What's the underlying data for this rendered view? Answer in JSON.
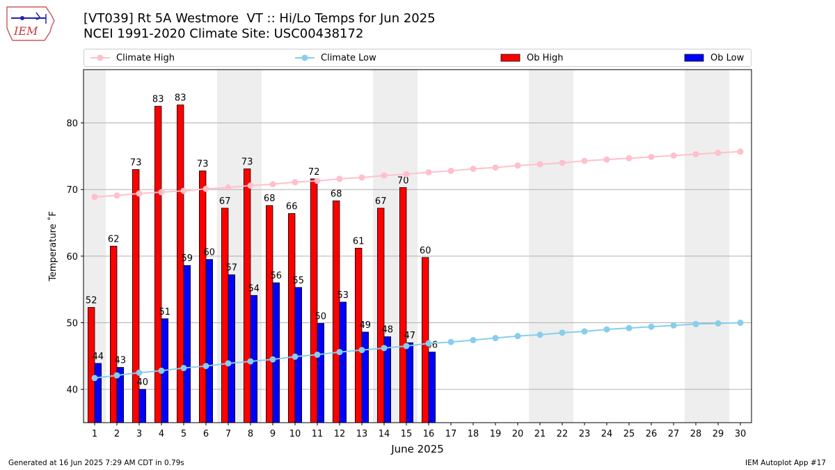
{
  "header": {
    "title_line1": "[VT039] Rt 5A Westmore  VT :: Hi/Lo Temps for Jun 2025",
    "title_line2": "NCEI 1991-2020 Climate Site: USC00438172",
    "logo_text": "IEM"
  },
  "legend": {
    "items": [
      {
        "label": "Climate High",
        "color": "#ffc0cb",
        "kind": "line"
      },
      {
        "label": "Climate Low",
        "color": "#87ceeb",
        "kind": "line"
      },
      {
        "label": "Ob High",
        "color": "#ff0000",
        "kind": "bar"
      },
      {
        "label": "Ob Low",
        "color": "#0000ff",
        "kind": "bar"
      }
    ]
  },
  "footer": {
    "generated": "Generated at 16 Jun 2025 7:29 AM CDT in 0.79s",
    "app": "IEM Autoplot App #17"
  },
  "chart_data": {
    "type": "bar",
    "xlabel": "June 2025",
    "ylabel": "Temperature ˚F",
    "xlim": [
      0.5,
      30.5
    ],
    "ylim": [
      35,
      88
    ],
    "yticks": [
      40,
      50,
      60,
      70,
      80
    ],
    "grid": "y",
    "legend_position": "top",
    "weekend_shading_days": [
      1,
      7,
      8,
      14,
      15,
      21,
      22,
      28,
      29
    ],
    "days": [
      1,
      2,
      3,
      4,
      5,
      6,
      7,
      8,
      9,
      10,
      11,
      12,
      13,
      14,
      15,
      16,
      17,
      18,
      19,
      20,
      21,
      22,
      23,
      24,
      25,
      26,
      27,
      28,
      29,
      30
    ],
    "series": [
      {
        "name": "Ob High",
        "color": "#ff0000",
        "kind": "bar",
        "values": [
          52.3,
          61.5,
          73.0,
          82.5,
          82.7,
          72.8,
          67.2,
          73.1,
          67.6,
          66.4,
          71.6,
          68.3,
          61.2,
          67.2,
          70.3,
          59.8
        ],
        "labels": [
          "52",
          "62",
          "73",
          "83",
          "83",
          "73",
          "67",
          "73",
          "68",
          "66",
          "72",
          "68",
          "61",
          "67",
          "70",
          "60"
        ]
      },
      {
        "name": "Ob Low",
        "color": "#0000ff",
        "kind": "bar",
        "values": [
          43.9,
          43.3,
          40.0,
          50.6,
          58.6,
          59.5,
          57.2,
          54.1,
          56.0,
          55.3,
          49.9,
          53.1,
          48.6,
          47.9,
          47.0,
          45.6
        ],
        "labels": [
          "44",
          "43",
          "40",
          "51",
          "59",
          "60",
          "57",
          "54",
          "56",
          "55",
          "50",
          "53",
          "49",
          "48",
          "47",
          "46"
        ]
      },
      {
        "name": "Climate High",
        "color": "#ffc0cb",
        "kind": "line",
        "values": [
          68.9,
          69.1,
          69.4,
          69.6,
          69.8,
          70.1,
          70.3,
          70.6,
          70.8,
          71.1,
          71.3,
          71.6,
          71.8,
          72.1,
          72.3,
          72.6,
          72.8,
          73.1,
          73.3,
          73.6,
          73.8,
          74.0,
          74.3,
          74.5,
          74.7,
          74.9,
          75.1,
          75.3,
          75.5,
          75.7
        ]
      },
      {
        "name": "Climate Low",
        "color": "#87ceeb",
        "kind": "line",
        "values": [
          41.7,
          42.1,
          42.5,
          42.8,
          43.2,
          43.5,
          43.9,
          44.2,
          44.5,
          44.9,
          45.2,
          45.6,
          45.9,
          46.2,
          46.5,
          46.9,
          47.1,
          47.4,
          47.7,
          48.0,
          48.2,
          48.5,
          48.7,
          49.0,
          49.2,
          49.4,
          49.6,
          49.8,
          49.9,
          50.0
        ]
      }
    ]
  }
}
